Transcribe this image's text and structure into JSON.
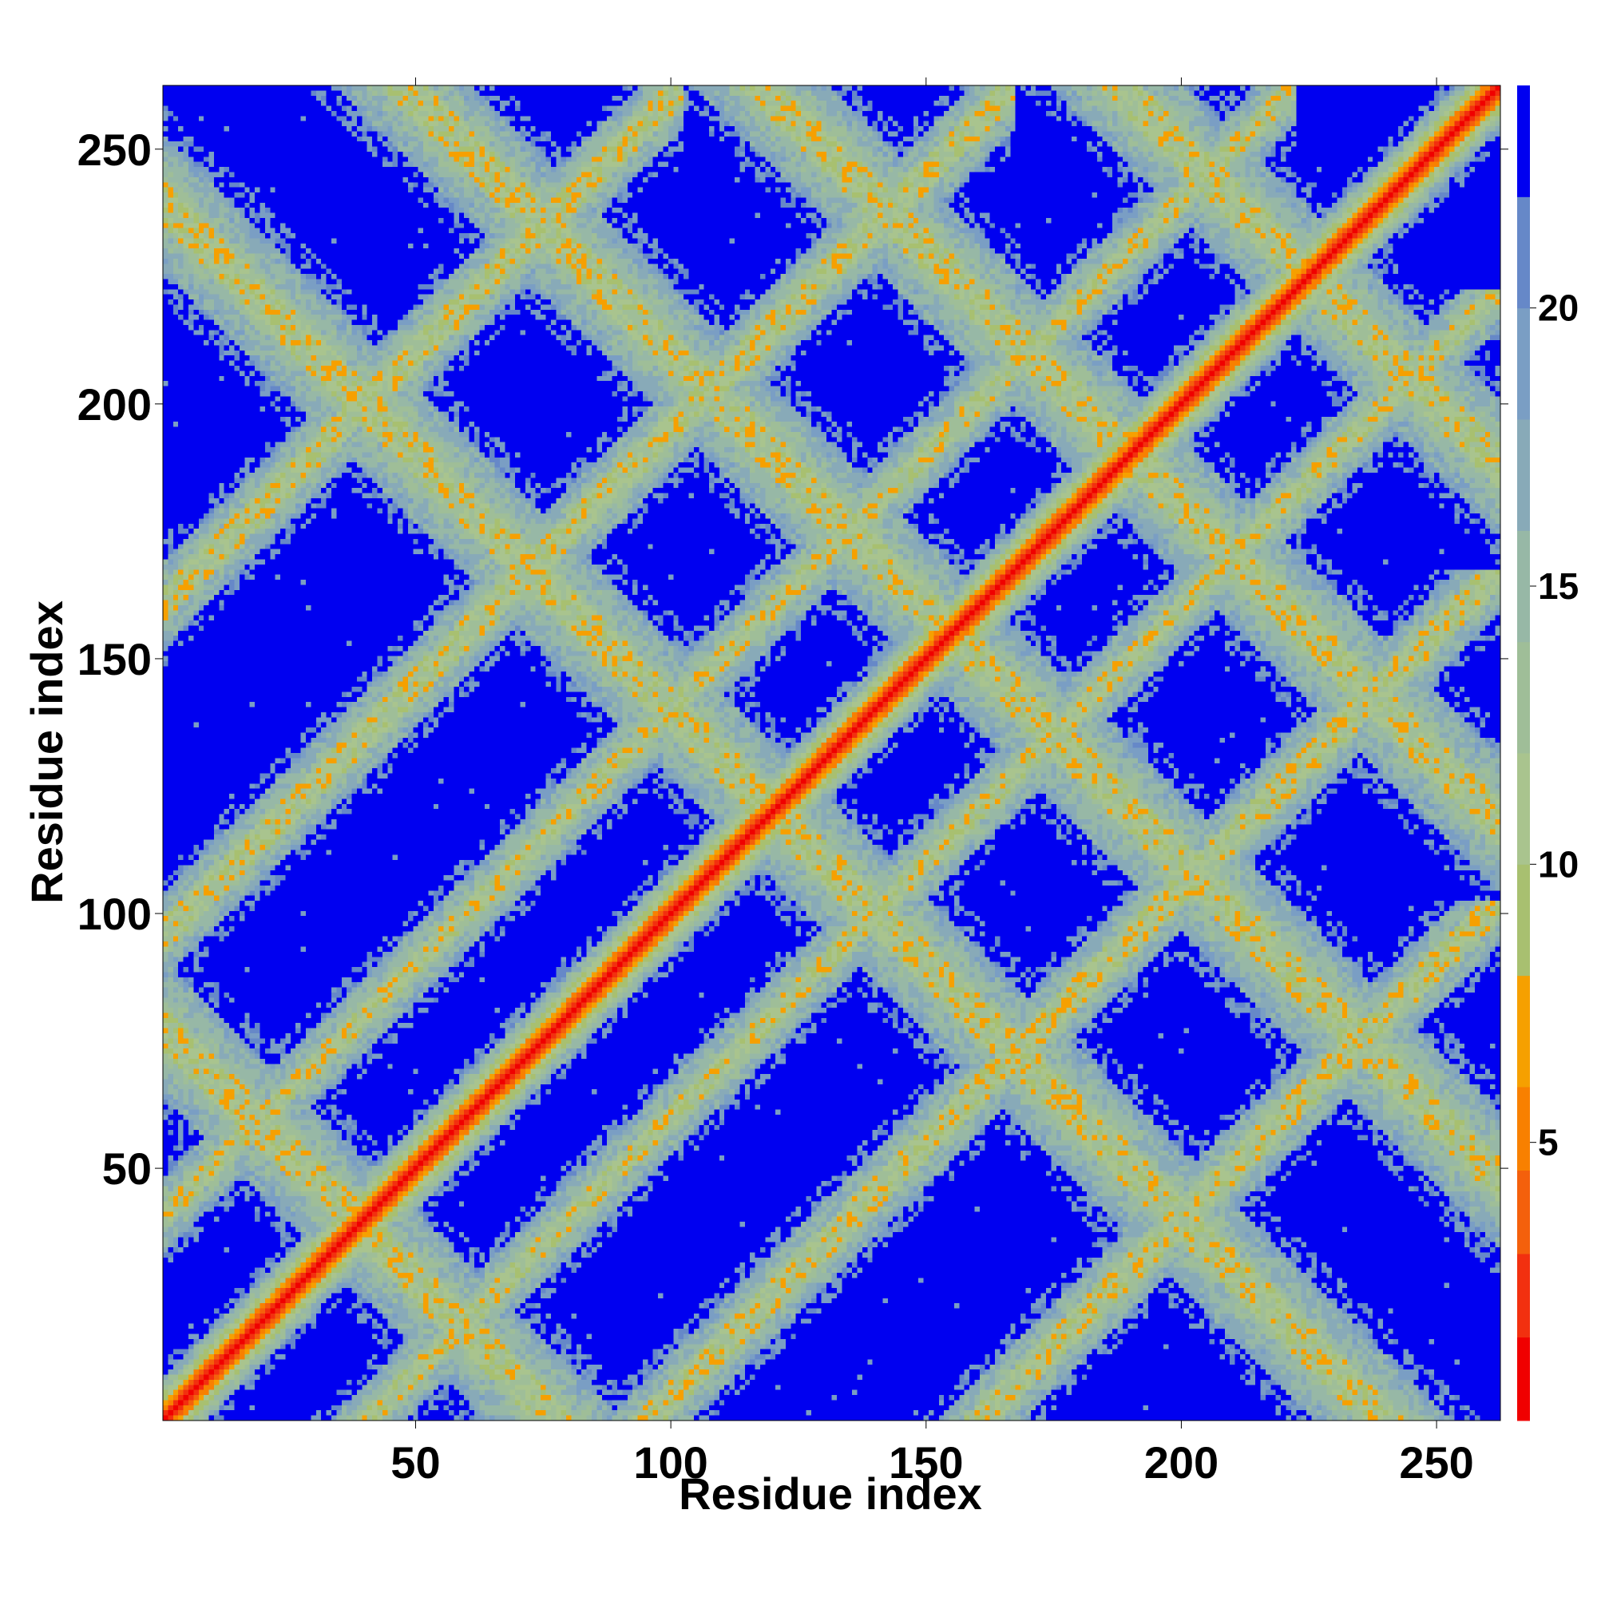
{
  "chart_data": {
    "type": "heatmap",
    "title": "",
    "xlabel": "Residue index",
    "ylabel": "Residue index",
    "xlim": [
      1,
      262
    ],
    "ylim": [
      1,
      262
    ],
    "x_ticks": [
      50,
      100,
      150,
      200,
      250
    ],
    "y_ticks": [
      50,
      100,
      150,
      200,
      250
    ],
    "n_residues": 262,
    "background_value": 24,
    "description_of_pattern": "symmetric residue distance map; near-zero values along the main diagonal, intermediate values (8-22) in broad bands forming a lattice of crossing anti-diagonal and diagonal stripes",
    "bands": [
      {
        "kind": "diagonal",
        "offset": 0,
        "halfwidth": 9
      },
      {
        "kind": "anti",
        "sum": 78,
        "from": 2,
        "to": 76
      },
      {
        "kind": "anti",
        "sum": 310,
        "from": 50,
        "to": 260
      },
      {
        "kind": "anti",
        "sum": 380,
        "from": 118,
        "to": 262
      },
      {
        "kind": "anti",
        "sum": 450,
        "from": 188,
        "to": 262
      },
      {
        "kind": "anti",
        "sum": 240,
        "from": 5,
        "to": 235
      },
      {
        "kind": "diagonal",
        "offset": 160,
        "halfwidth": 9
      },
      {
        "kind": "diagonal",
        "offset": 95,
        "halfwidth": 9
      },
      {
        "kind": "diagonal",
        "offset": 40,
        "halfwidth": 8
      }
    ],
    "colorbar": {
      "ticks": [
        5,
        10,
        15,
        20
      ],
      "range": [
        0,
        24
      ],
      "levels": [
        {
          "from": 0,
          "to": 1.5,
          "color": "#f00000"
        },
        {
          "from": 1.5,
          "to": 3,
          "color": "#f2300f"
        },
        {
          "from": 3,
          "to": 4.5,
          "color": "#f4600c"
        },
        {
          "from": 4.5,
          "to": 6,
          "color": "#f88000"
        },
        {
          "from": 6,
          "to": 8,
          "color": "#f6a000"
        },
        {
          "from": 8,
          "to": 10,
          "color": "#a8c070"
        },
        {
          "from": 10,
          "to": 12,
          "color": "#a9c48e"
        },
        {
          "from": 12,
          "to": 14,
          "color": "#9fbe98"
        },
        {
          "from": 14,
          "to": 16,
          "color": "#97b8a6"
        },
        {
          "from": 16,
          "to": 18,
          "color": "#88aab8"
        },
        {
          "from": 18,
          "to": 20,
          "color": "#7a9ec4"
        },
        {
          "from": 20,
          "to": 22,
          "color": "#6688c8"
        },
        {
          "from": 22,
          "to": 24,
          "color": "#0000f0"
        }
      ]
    }
  }
}
